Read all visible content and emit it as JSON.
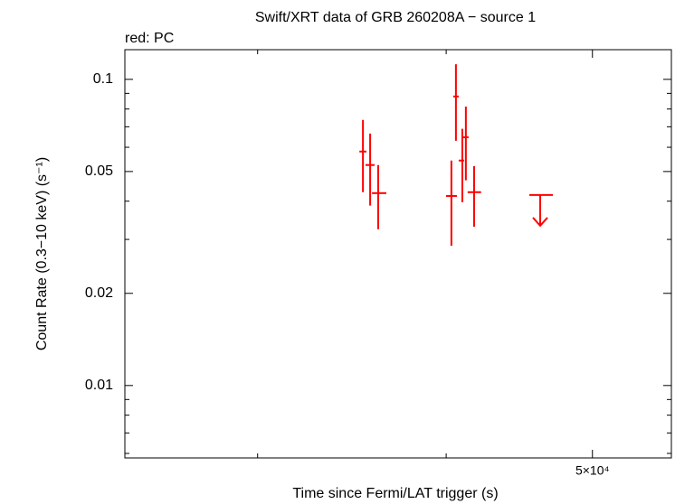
{
  "chart_data": {
    "type": "scatter",
    "title": "Swift/XRT data of GRB 260208A − source 1",
    "subtitle": "red: PC",
    "x_label": "Time since Fermi/LAT trigger (s)",
    "y_label": "Count Rate (0.3−10 keV) (s⁻¹)",
    "log_x": true,
    "log_y": true,
    "xlim": [
      24500,
      56400
    ],
    "ylim": [
      0.0058,
      0.125
    ],
    "xticks": [
      {
        "value": 50000,
        "label": "5×10⁴"
      }
    ],
    "xminor_ticks": [
      30000,
      40000
    ],
    "yticks": [
      0.01,
      0.02,
      0.05,
      0.1
    ],
    "yminor_ticks": [
      0.006,
      0.007,
      0.008,
      0.009,
      0.03,
      0.04,
      0.06,
      0.07,
      0.08,
      0.09
    ],
    "series": [
      {
        "color": "#ff0000",
        "x": [
          35230,
          35620,
          36060,
          40320,
          40600,
          41000,
          41220,
          41740
        ],
        "xlo": [
          35040,
          35370,
          35720,
          39990,
          40430,
          40770,
          41050,
          41330
        ],
        "xhi": [
          35420,
          35860,
          36510,
          40660,
          40770,
          41110,
          41390,
          42190
        ],
        "values": [
          0.0581,
          0.0525,
          0.0425,
          0.0416,
          0.0879,
          0.0543,
          0.0647,
          0.0428
        ],
        "ylo": [
          0.0428,
          0.0387,
          0.0324,
          0.0286,
          0.063,
          0.0397,
          0.0468,
          0.033
        ],
        "yhi": [
          0.0737,
          0.0665,
          0.0525,
          0.0543,
          0.112,
          0.0689,
          0.0815,
          0.0521
        ]
      }
    ],
    "upper_limits": {
      "color": "#ff0000",
      "x": [
        46170
      ],
      "xlo": [
        45410
      ],
      "xhi": [
        47070
      ],
      "values": [
        0.0419
      ]
    }
  }
}
